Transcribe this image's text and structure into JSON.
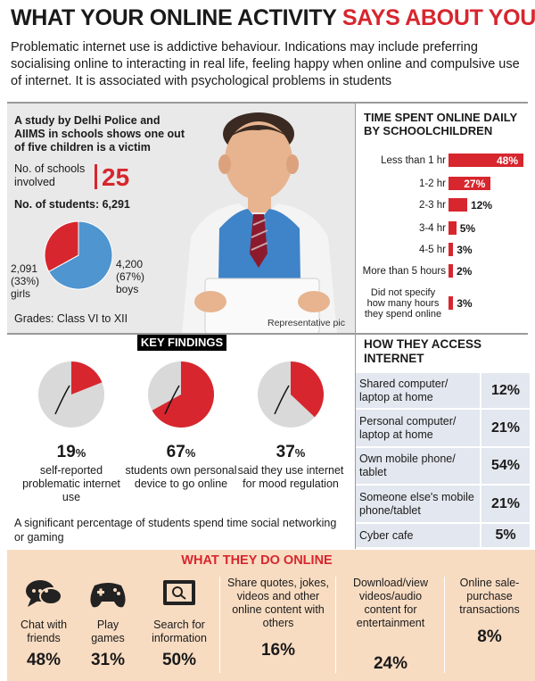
{
  "header": {
    "title_black": "WHAT YOUR ONLINE ACTIVITY",
    "title_red": "SAYS ABOUT YOU",
    "intro": "Problematic internet use is addictive behaviour. Indications may include preferring socialising online to interacting in real life, feeling happy when online and compulsive use of internet. It is associated with psychological problems in students"
  },
  "study": {
    "text": "A study by Delhi Police and AIIMS in schools shows one out of five children is a victim",
    "schools_label": "No. of schools involved",
    "schools_value": "25",
    "students": "No. of students: 6,291",
    "girls_value": "2,091",
    "girls_pct": "(33%)",
    "girls_label": "girls",
    "boys_value": "4,200",
    "boys_pct": "(67%)",
    "boys_label": "boys",
    "grades": "Grades: Class VI to XII",
    "photo_caption": "Representative pic"
  },
  "time_spent": {
    "title": "TIME SPENT ONLINE DAILY BY SCHOOLCHILDREN"
  },
  "key_findings": {
    "title": "KEY FINDINGS",
    "items": [
      {
        "pct": "19",
        "desc": "self-reported problematic internet use"
      },
      {
        "pct": "67",
        "desc": "students own personal device to go online"
      },
      {
        "pct": "37",
        "desc": "said they use internet for mood regulation"
      }
    ],
    "note": "A significant percentage of students spend time social networking or gaming"
  },
  "access": {
    "title": "HOW THEY ACCESS INTERNET",
    "rows": [
      {
        "label": "Shared computer/ laptop at home",
        "value": "12%"
      },
      {
        "label": "Personal computer/ laptop at home",
        "value": "21%"
      },
      {
        "label": "Own mobile phone/ tablet",
        "value": "54%"
      },
      {
        "label": "Someone else's mobile phone/tablet",
        "value": "21%"
      },
      {
        "label": "Cyber cafe",
        "value": "5%"
      }
    ]
  },
  "online": {
    "title": "WHAT THEY DO ONLINE",
    "items": [
      {
        "label": "Chat with friends",
        "pct": "48%",
        "icon": "chat-icon"
      },
      {
        "label": "Play games",
        "pct": "31%",
        "icon": "gamepad-icon"
      },
      {
        "label": "Search for information",
        "pct": "50%",
        "icon": "search-screen-icon"
      },
      {
        "label": "Share quotes, jokes, videos and other online content with others",
        "pct": "16%"
      },
      {
        "label": "Download/view videos/audio content for entertainment",
        "pct": "24%"
      },
      {
        "label": "Online sale-purchase transactions",
        "pct": "8%"
      }
    ]
  },
  "colors": {
    "red": "#d7262e",
    "blue": "#4f95d0",
    "grey": "#d9d9d9",
    "peach": "#f8dcc2"
  },
  "chart_data": [
    {
      "type": "bar",
      "title": "TIME SPENT ONLINE DAILY BY SCHOOLCHILDREN",
      "categories": [
        "Less than 1 hr",
        "1-2 hr",
        "2-3 hr",
        "3-4 hr",
        "4-5 hr",
        "More than 5 hours",
        "Did not specify how many hours they spend online"
      ],
      "values": [
        48,
        27,
        12,
        5,
        3,
        2,
        3
      ],
      "unit": "%",
      "orientation": "horizontal"
    },
    {
      "type": "pie",
      "categories": [
        "boys",
        "girls"
      ],
      "values": [
        67,
        33
      ],
      "colors": [
        "#4f95d0",
        "#d7262e"
      ]
    },
    {
      "type": "pie",
      "title": "KEY FINDINGS",
      "categories": [
        "self-reported problematic internet use",
        "students own personal device to go online",
        "said they use internet for mood regulation"
      ],
      "values": [
        19,
        67,
        37
      ],
      "unit": "%"
    }
  ]
}
